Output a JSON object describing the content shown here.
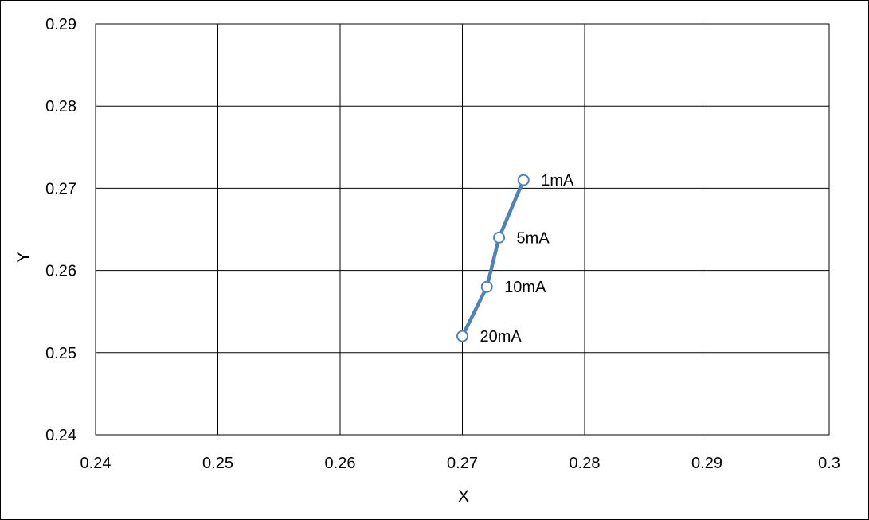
{
  "chart_data": {
    "type": "scatter",
    "xlabel": "X",
    "ylabel": "Y",
    "xlim": [
      0.24,
      0.3
    ],
    "ylim": [
      0.24,
      0.29
    ],
    "x_ticks": [
      "0.24",
      "0.25",
      "0.26",
      "0.27",
      "0.28",
      "0.29",
      "0.3"
    ],
    "y_ticks": [
      "0.29",
      "0.28",
      "0.27",
      "0.26",
      "0.25",
      "0.24"
    ],
    "grid": true,
    "legend": "none",
    "series": [
      {
        "points": [
          {
            "x": 0.275,
            "y": 0.271,
            "label": "1mA"
          },
          {
            "x": 0.273,
            "y": 0.264,
            "label": "5mA"
          },
          {
            "x": 0.272,
            "y": 0.258,
            "label": "10mA"
          },
          {
            "x": 0.27,
            "y": 0.252,
            "label": "20mA"
          }
        ],
        "line_color": "#4F81BD",
        "marker_fill": "#ffffff",
        "marker_style": "circle"
      }
    ]
  }
}
